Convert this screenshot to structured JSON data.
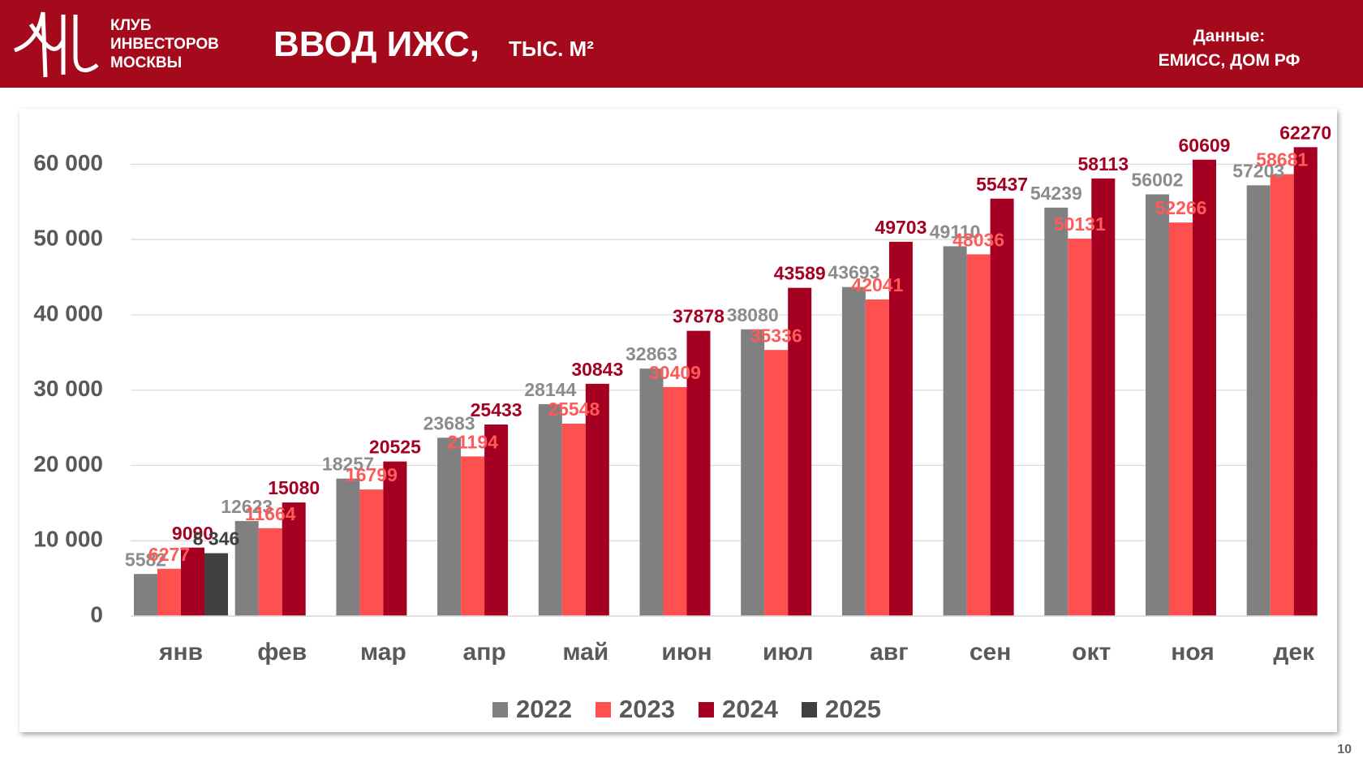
{
  "header": {
    "logo_lines": [
      "КЛУБ",
      "ИНВЕСТОРОВ",
      "МОСКВЫ"
    ],
    "title": "ВВОД ИЖС,",
    "subtitle": "ТЫС. М²",
    "source_label": "Данные:",
    "source": "ЕМИСС, ДОМ РФ"
  },
  "page_number": "10",
  "chart_data": {
    "type": "bar",
    "categories": [
      "янв",
      "фев",
      "мар",
      "апр",
      "май",
      "июн",
      "июл",
      "авг",
      "сен",
      "окт",
      "ноя",
      "дек"
    ],
    "series": [
      {
        "name": "2022",
        "color": "#808080",
        "label_color": "#8c8c8c",
        "values": [
          5582,
          12623,
          18257,
          23683,
          28144,
          32863,
          38080,
          43693,
          49110,
          54239,
          56002,
          57203
        ]
      },
      {
        "name": "2023",
        "color": "#ff5050",
        "label_color": "#ff5a5a",
        "values": [
          6277,
          11664,
          16799,
          21194,
          25548,
          30409,
          35336,
          42041,
          48036,
          50131,
          52266,
          58681
        ]
      },
      {
        "name": "2024",
        "color": "#a50021",
        "label_color": "#a50021",
        "values": [
          9090,
          15080,
          20525,
          25433,
          30843,
          37878,
          43589,
          49703,
          55437,
          58113,
          60609,
          62270
        ]
      },
      {
        "name": "2025",
        "color": "#404040",
        "label_color": "#404040",
        "values": [
          8346,
          null,
          null,
          null,
          null,
          null,
          null,
          null,
          null,
          null,
          null,
          null
        ],
        "value_labels": [
          "8 346",
          null,
          null,
          null,
          null,
          null,
          null,
          null,
          null,
          null,
          null,
          null
        ]
      }
    ],
    "ylim": [
      0,
      65000
    ],
    "yticks": [
      0,
      {
        "value": 10000,
        "label": "10 000"
      },
      {
        "value": 20000,
        "label": "20 000"
      },
      {
        "value": 30000,
        "label": "30 000"
      },
      {
        "value": 40000,
        "label": "40 000"
      },
      {
        "value": 50000,
        "label": "50 000"
      },
      {
        "value": 60000,
        "label": "60 000"
      }
    ],
    "grid": true,
    "legend": "bottom"
  }
}
